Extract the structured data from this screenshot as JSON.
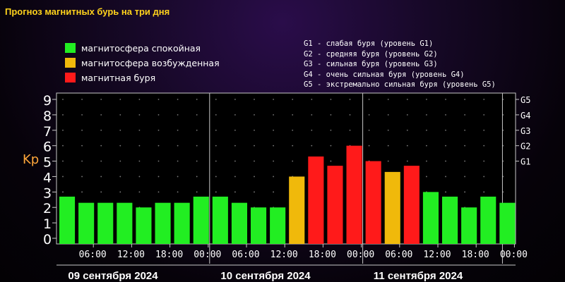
{
  "page": {
    "title": "Прогноз магнитных бурь на три дня"
  },
  "legend": {
    "items": [
      {
        "label": "магнитосфера спокойная",
        "color": "#22ee22"
      },
      {
        "label": "магнитосфера возбужденная",
        "color": "#f0b90b"
      },
      {
        "label": "магнитная буря",
        "color": "#ff1a1a"
      }
    ],
    "storm_levels": [
      "G1 - слабая буря (уровень G1)",
      "G2 - средняя буря (уровень G2)",
      "G3 - сильная буря (уровень G3)",
      "G4 - очень сильная буря (уровень G4)",
      "G5 - экстремально сильная буря (уровень G5)"
    ]
  },
  "chart_data": {
    "type": "bar",
    "ylabel": "Kp",
    "ylim": [
      0,
      9
    ],
    "y_ticks": [
      "0",
      "1",
      "2",
      "3",
      "4",
      "5",
      "6",
      "7",
      "8",
      "9"
    ],
    "right_ticks": [
      {
        "label": "G1",
        "y": 5
      },
      {
        "label": "G2",
        "y": 6
      },
      {
        "label": "G3",
        "y": 7
      },
      {
        "label": "G4",
        "y": 8
      },
      {
        "label": "G5",
        "y": 9
      }
    ],
    "x_tick_labels": [
      "06:00",
      "12:00",
      "18:00",
      "00:00",
      "06:00",
      "12:00",
      "18:00",
      "00:00",
      "06:00",
      "12:00",
      "18:00",
      "00:00"
    ],
    "days": [
      "09 сентября 2024",
      "10 сентября 2024",
      "11 сентября 2024"
    ],
    "values": [
      2.7,
      2.3,
      2.3,
      2.3,
      2.0,
      2.3,
      2.3,
      2.7,
      2.7,
      2.3,
      2.0,
      2.0,
      4.0,
      5.3,
      4.7,
      6.0,
      5.0,
      4.3,
      4.7,
      3.0,
      2.7,
      2.0,
      2.7,
      2.3
    ],
    "color_levels": {
      "quiet": "#22ee22",
      "active": "#f0b90b",
      "storm": "#ff1a1a"
    },
    "grid": true
  }
}
